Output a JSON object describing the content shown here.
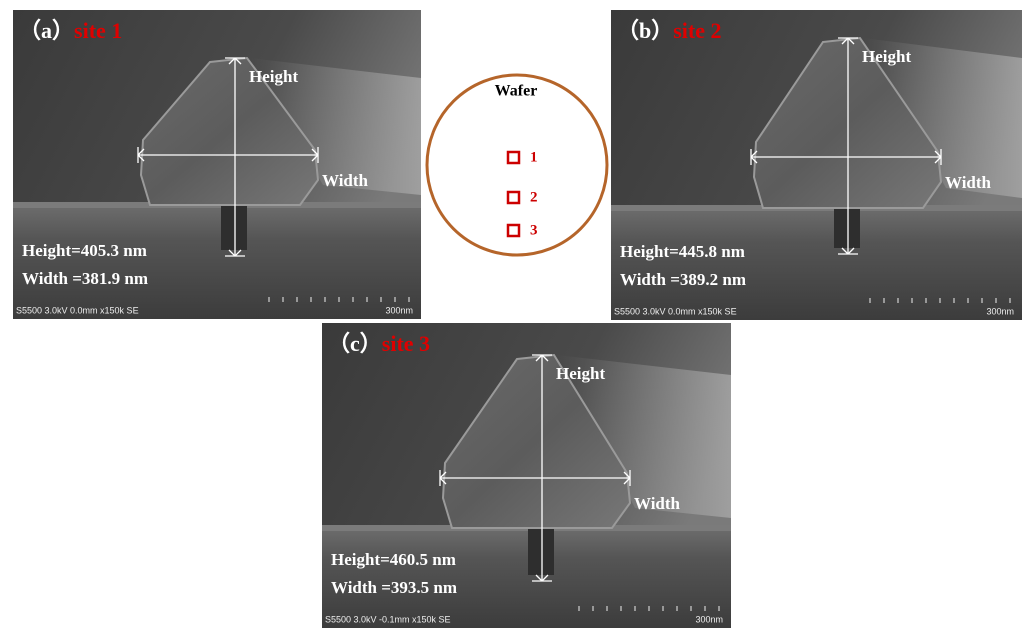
{
  "panels": [
    {
      "label": "（a）",
      "site": "site 1",
      "height_label": "Height",
      "width_label": "Width",
      "height_result": "Height=405.3 nm",
      "width_result": "Width =381.9 nm",
      "footer": "S5500 3.0kV 0.0mm x150k SE",
      "scale": "300nm"
    },
    {
      "label": "（b）",
      "site": "site 2",
      "height_label": "Height",
      "width_label": "Width",
      "height_result": "Height=445.8 nm",
      "width_result": "Width =389.2 nm",
      "footer": "S5500 3.0kV 0.0mm x150k SE",
      "scale": "300nm"
    },
    {
      "label": "（c）",
      "site": "site 3",
      "height_label": "Height",
      "width_label": "Width",
      "height_result": "Height=460.5 nm",
      "width_result": "Width =393.5 nm",
      "footer": "S5500 3.0kV -0.1mm x150k SE",
      "scale": "300nm"
    }
  ],
  "wafer": {
    "title": "Wafer",
    "sites": [
      "1",
      "2",
      "3"
    ]
  }
}
